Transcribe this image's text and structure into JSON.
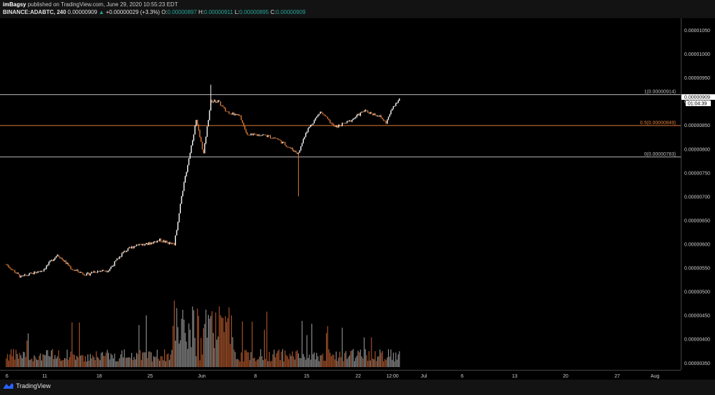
{
  "header": {
    "author": "imBagsy",
    "published_text": "published on TradingView.com, June 29, 2020 10:55:23 EDT",
    "symbol": "BINANCE:ADABTC, 240",
    "last": "0.00000909",
    "change": "+0.00000029 (+3.3%)",
    "o_label": "O:",
    "o_value": "0.00000897",
    "h_label": "H:",
    "h_value": "0.00000911",
    "l_label": "L:",
    "l_value": "0.00000895",
    "c_label": "C:",
    "c_value": "0.00000909"
  },
  "footer": {
    "brand": "TradingView"
  },
  "colors": {
    "up": "#ffffff",
    "down": "#e07b39",
    "fib_mid": "#e07b39",
    "fib_line": "#bdbdbd",
    "teal": "#26a69a"
  },
  "chart_data": {
    "type": "candlestick",
    "title": "",
    "x_tick_labels": [
      "6",
      "11",
      "18",
      "25",
      "Jun",
      "8",
      "15",
      "22",
      "12:00",
      "Jul",
      "6",
      "13",
      "20",
      "27",
      "Aug"
    ],
    "y_tick_labels": [
      "0.00001050",
      "0.00001000",
      "0.00000950",
      "0.00000900",
      "0.00000850",
      "0.00000800",
      "0.00000750",
      "0.00000700",
      "0.00000650",
      "0.00000600",
      "0.00000550",
      "0.00000500",
      "0.00000450",
      "0.00000400",
      "0.00000350"
    ],
    "ylim": [
      3.35e-06,
      1.075e-05
    ],
    "price_label": "0.00000909",
    "countdown_label": "01:04:39",
    "fib_levels": [
      {
        "label": "1(0.00000914)",
        "value": 9.14e-06
      },
      {
        "label": "0.5(0.00000849)",
        "value": 8.49e-06
      },
      {
        "label": "0(0.00000783)",
        "value": 7.83e-06
      }
    ],
    "price_path": [
      [
        "2020-05-06",
        5.57e-06
      ],
      [
        "2020-05-08",
        5.3e-06
      ],
      [
        "2020-05-10",
        5.4e-06
      ],
      [
        "2020-05-11",
        5.45e-06
      ],
      [
        "2020-05-13",
        5.78e-06
      ],
      [
        "2020-05-15",
        5.47e-06
      ],
      [
        "2020-05-17",
        5.35e-06
      ],
      [
        "2020-05-18",
        5.42e-06
      ],
      [
        "2020-05-20",
        5.45e-06
      ],
      [
        "2020-05-22",
        5.82e-06
      ],
      [
        "2020-05-24",
        6e-06
      ],
      [
        "2020-05-25",
        5.98e-06
      ],
      [
        "2020-05-27",
        6.08e-06
      ],
      [
        "2020-05-29",
        5.98e-06
      ],
      [
        "2020-05-30",
        7e-06
      ],
      [
        "2020-05-31",
        7.8e-06
      ],
      [
        "2020-06-01",
        8.6e-06
      ],
      [
        "2020-06-02",
        7.9e-06
      ],
      [
        "2020-06-03",
        9e-06
      ],
      [
        "2020-06-04",
        9e-06
      ],
      [
        "2020-06-05",
        8.8e-06
      ],
      [
        "2020-06-07",
        8.68e-06
      ],
      [
        "2020-06-08",
        8.28e-06
      ],
      [
        "2020-06-10",
        8.3e-06
      ],
      [
        "2020-06-12",
        8.22e-06
      ],
      [
        "2020-06-14",
        8e-06
      ],
      [
        "2020-06-15",
        7.9e-06
      ],
      [
        "2020-06-16",
        8.35e-06
      ],
      [
        "2020-06-18",
        8.78e-06
      ],
      [
        "2020-06-20",
        8.45e-06
      ],
      [
        "2020-06-22",
        8.58e-06
      ],
      [
        "2020-06-24",
        8.8e-06
      ],
      [
        "2020-06-26",
        8.7e-06
      ],
      [
        "2020-06-27",
        8.55e-06
      ],
      [
        "2020-06-28",
        8.9e-06
      ],
      [
        "2020-06-29",
        9.09e-06
      ]
    ],
    "notable_wicks": [
      {
        "date": "2020-06-03",
        "high": 9.35e-06
      },
      {
        "date": "2020-06-15",
        "low": 7e-06
      }
    ],
    "volume_note": "relative volume bars plotted along the bottom of the price pane, largest around 2020-05-31 to 2020-06-03"
  }
}
